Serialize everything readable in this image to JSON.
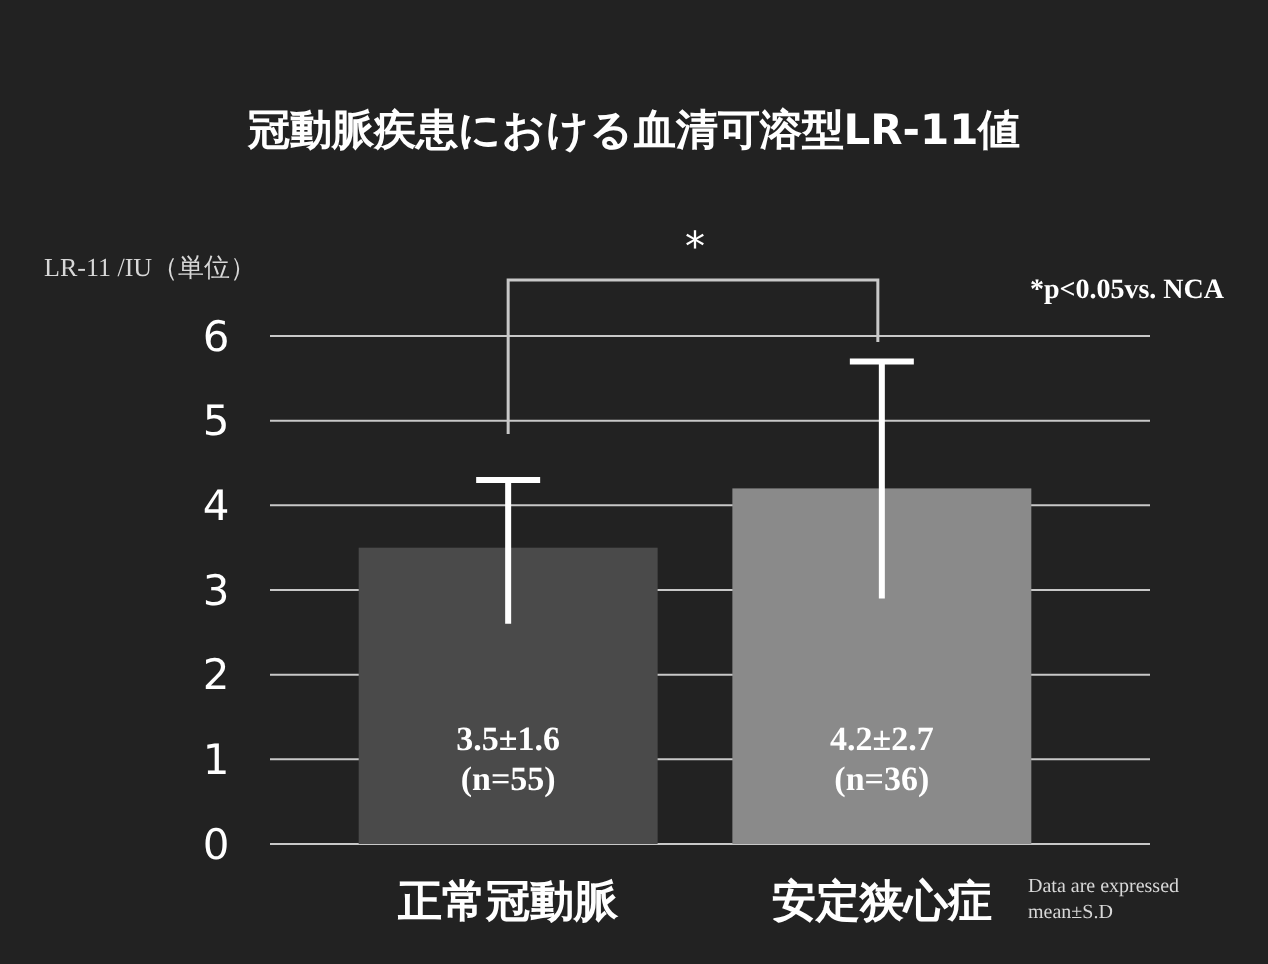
{
  "chart_data": {
    "type": "bar",
    "title": "冠動脈疾患における血清可溶型LR-11値",
    "ylabel": "LR-11 /IU（単位）",
    "categories": [
      "正常冠動脈",
      "安定狭心症"
    ],
    "values": [
      3.5,
      4.2
    ],
    "colors": [
      "#4a4a4a",
      "#8a8a8a"
    ],
    "errors": [
      [
        2.6,
        4.3
      ],
      [
        2.9,
        5.7
      ]
    ],
    "value_labels": [
      "3.5±1.6\n(n=55)",
      "4.2±2.7\n(n=36)"
    ],
    "ylim": [
      0,
      6
    ],
    "yticks": [
      0,
      1,
      2,
      3,
      4,
      5,
      6
    ],
    "grid": "y",
    "annotations": [
      "*",
      "*p<0.05vs. NCA",
      "Data are expressed\nmean±S.D"
    ]
  }
}
